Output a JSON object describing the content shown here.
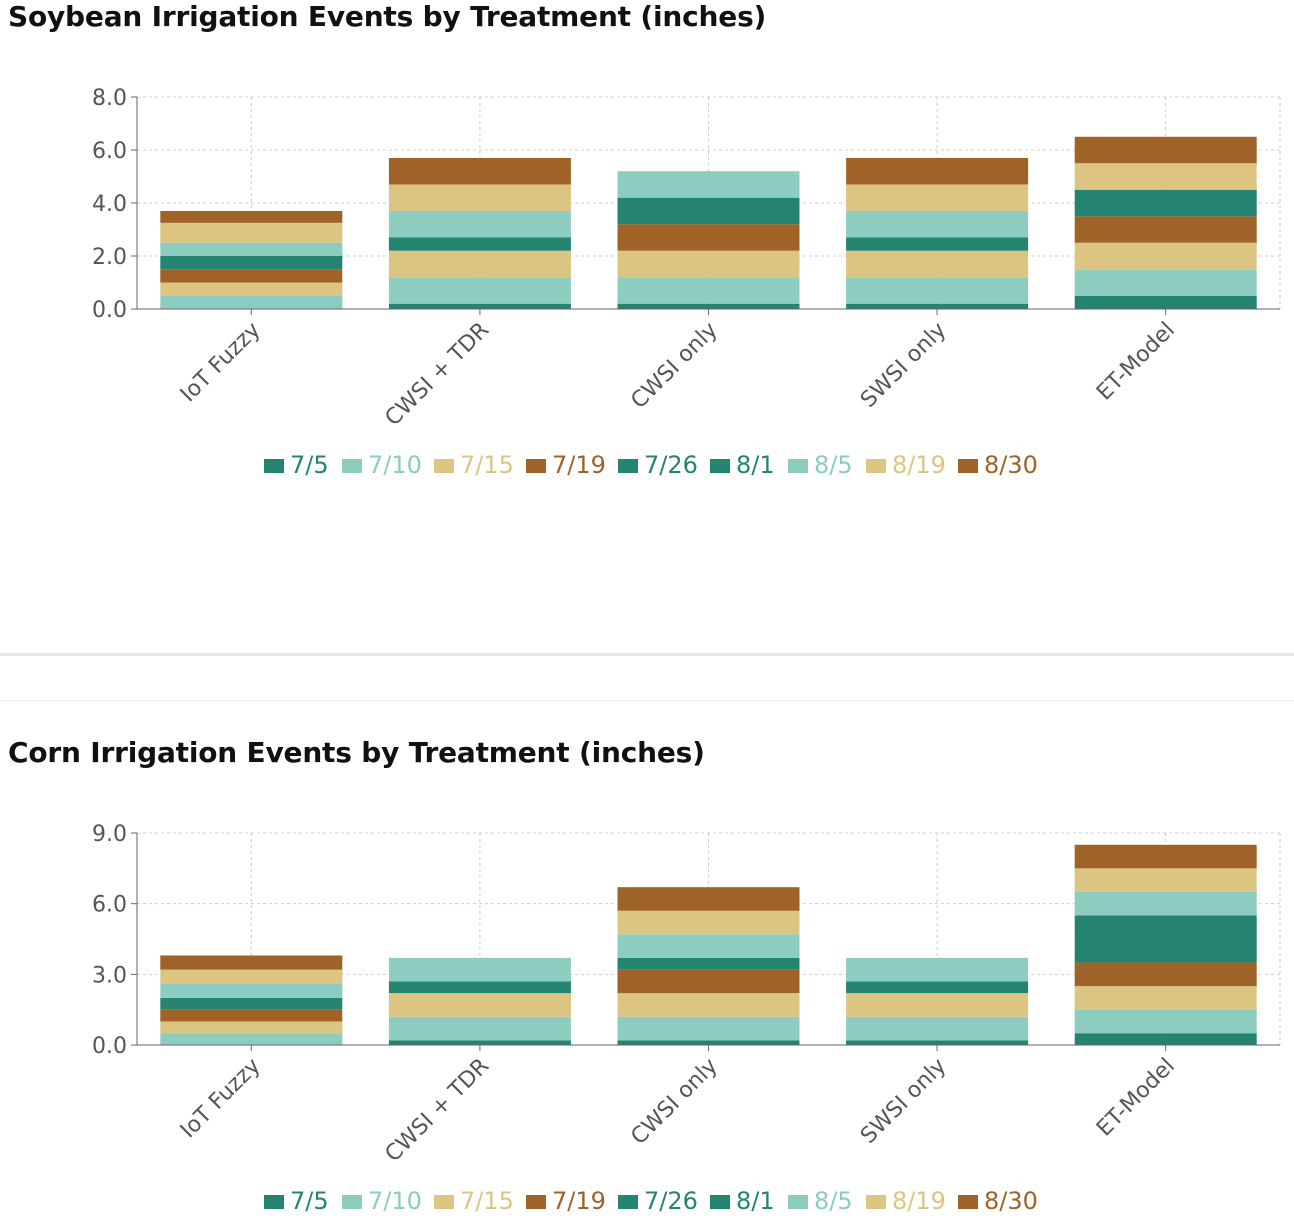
{
  "colors": {
    "teal_dark": "#258471",
    "teal_light": "#8ccdc0",
    "sand": "#dcc483",
    "brown": "#a06327",
    "axis": "#666666",
    "grid": "#cccccc"
  },
  "chart_data": [
    {
      "type": "bar",
      "stacked": true,
      "title": "Soybean Irrigation Events by Treatment (inches)",
      "categories": [
        "IoT Fuzzy",
        "CWSI + TDR",
        "CWSI only",
        "SWSI only",
        "ET-Model"
      ],
      "ylim": [
        0,
        8
      ],
      "yticks": [
        "0.0",
        "2.0",
        "4.0",
        "6.0",
        "8.0"
      ],
      "grid": true,
      "legend": "bottom-center",
      "series": [
        {
          "name": "7/5",
          "color": "#258471",
          "values": [
            0.0,
            0.2,
            0.2,
            0.2,
            0.5
          ]
        },
        {
          "name": "7/10",
          "color": "#8ccdc0",
          "values": [
            0.5,
            1.0,
            1.0,
            1.0,
            1.0
          ]
        },
        {
          "name": "7/15",
          "color": "#dcc483",
          "values": [
            0.5,
            1.0,
            1.0,
            1.0,
            1.0
          ]
        },
        {
          "name": "7/19",
          "color": "#a06327",
          "values": [
            0.5,
            0.0,
            1.0,
            0.0,
            1.0
          ]
        },
        {
          "name": "7/26",
          "color": "#258471",
          "values": [
            0.0,
            0.0,
            1.0,
            0.0,
            1.0
          ]
        },
        {
          "name": "8/1",
          "color": "#258471",
          "values": [
            0.5,
            0.5,
            0.0,
            0.5,
            0.0
          ]
        },
        {
          "name": "8/5",
          "color": "#8ccdc0",
          "values": [
            0.5,
            1.0,
            1.0,
            1.0,
            0.0
          ]
        },
        {
          "name": "8/19",
          "color": "#dcc483",
          "values": [
            0.75,
            1.0,
            0.0,
            1.0,
            1.0
          ]
        },
        {
          "name": "8/30",
          "color": "#a06327",
          "values": [
            0.45,
            1.0,
            0.0,
            1.0,
            1.0
          ]
        }
      ]
    },
    {
      "type": "bar",
      "stacked": true,
      "title": "Corn Irrigation Events by Treatment (inches)",
      "categories": [
        "IoT Fuzzy",
        "CWSI + TDR",
        "CWSI only",
        "SWSI only",
        "ET-Model"
      ],
      "ylim": [
        0,
        9
      ],
      "yticks": [
        "0.0",
        "3.0",
        "6.0",
        "9.0"
      ],
      "grid": true,
      "legend": "bottom-center",
      "series": [
        {
          "name": "7/5",
          "color": "#258471",
          "values": [
            0.0,
            0.2,
            0.2,
            0.2,
            0.5
          ]
        },
        {
          "name": "7/10",
          "color": "#8ccdc0",
          "values": [
            0.5,
            1.0,
            1.0,
            1.0,
            1.0
          ]
        },
        {
          "name": "7/15",
          "color": "#dcc483",
          "values": [
            0.5,
            1.0,
            1.0,
            1.0,
            1.0
          ]
        },
        {
          "name": "7/19",
          "color": "#a06327",
          "values": [
            0.5,
            0.0,
            1.0,
            0.0,
            1.0
          ]
        },
        {
          "name": "7/26",
          "color": "#258471",
          "values": [
            0.0,
            0.0,
            0.0,
            0.0,
            1.0
          ]
        },
        {
          "name": "8/1",
          "color": "#258471",
          "values": [
            0.5,
            0.5,
            0.5,
            0.5,
            1.0
          ]
        },
        {
          "name": "8/5",
          "color": "#8ccdc0",
          "values": [
            0.6,
            1.0,
            1.0,
            1.0,
            1.0
          ]
        },
        {
          "name": "8/19",
          "color": "#dcc483",
          "values": [
            0.6,
            0.0,
            1.0,
            0.0,
            1.0
          ]
        },
        {
          "name": "8/30",
          "color": "#a06327",
          "values": [
            0.6,
            0.0,
            1.0,
            0.0,
            1.0
          ]
        }
      ]
    }
  ]
}
